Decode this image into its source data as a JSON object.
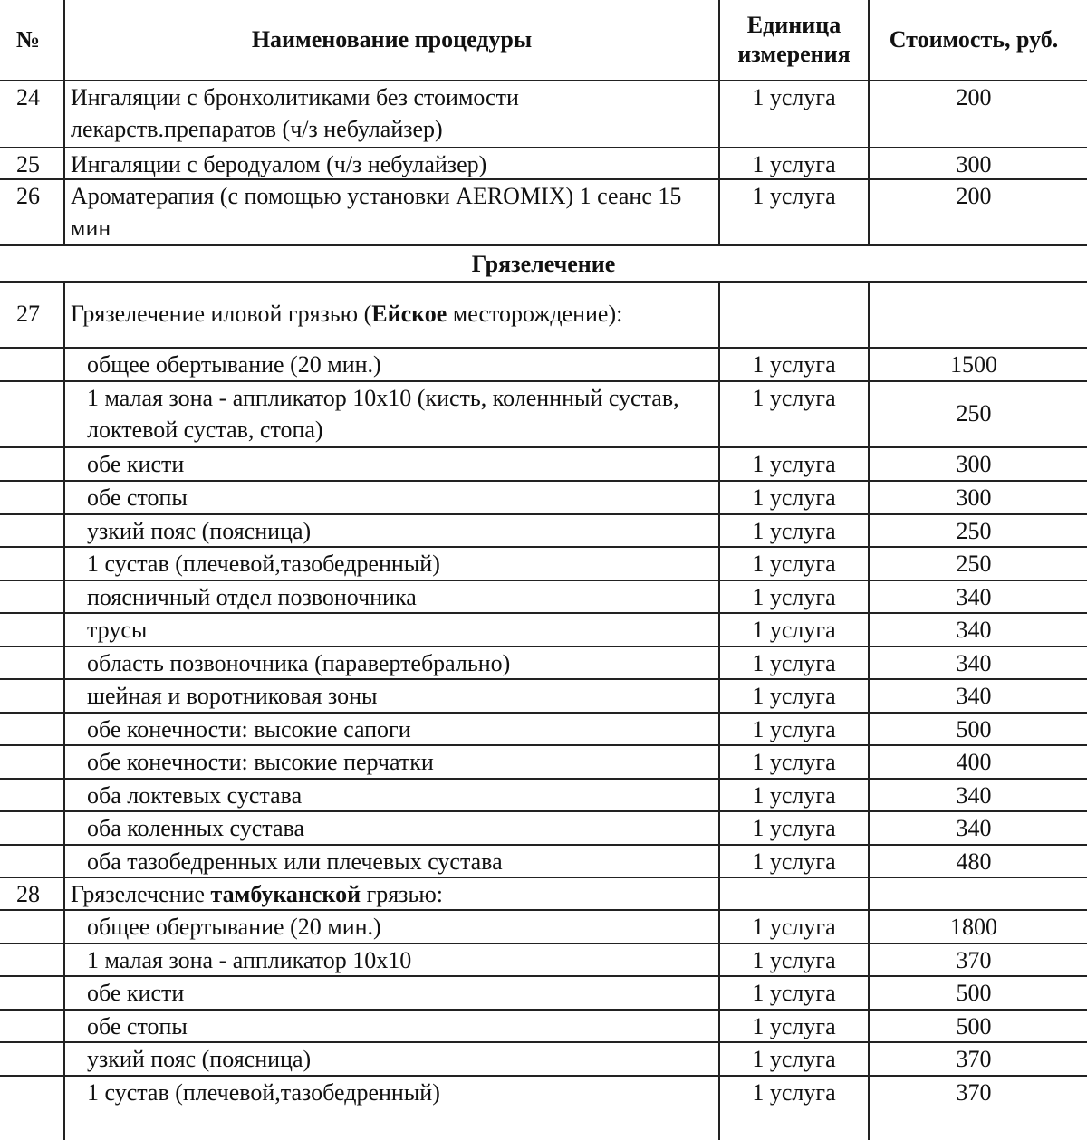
{
  "header": {
    "num": "№",
    "name": "Наименование процедуры",
    "unit": "Единица измерения",
    "price": "Стоимость, руб."
  },
  "section_title": "Грязелечение",
  "rows": [
    {
      "num": "24",
      "name": "Ингаляции с бронхолитиками без стоимости лекарств.препаратов (ч/з небулайзер)",
      "unit": "1 услуга",
      "price": "200"
    },
    {
      "num": "25",
      "name": "Ингаляции с беродуалом (ч/з небулайзер)",
      "unit": "1 услуга",
      "price": "300"
    },
    {
      "num": "26",
      "name": "Ароматерапия (с помощью установки AEROMIX) 1 сеанс 15 мин",
      "unit": "1 услуга",
      "price": "200"
    },
    {
      "section": true
    },
    {
      "num": "27",
      "name_pre": "Грязелечение иловой грязью (",
      "name_bold": "Ейское",
      "name_post": " месторождение):",
      "unit": "",
      "price": "",
      "center": true
    },
    {
      "sub": true,
      "name": "общее обертывание (20 мин.)",
      "unit": "1 услуга",
      "price": "1500"
    },
    {
      "sub": true,
      "name": "1 малая зона - аппликатор 10х10 (кисть, коленнный сустав, локтевой сустав, стопа)",
      "unit": "1 услуга",
      "price": "250",
      "price_center": true
    },
    {
      "sub": true,
      "name": "обе кисти",
      "unit": "1 услуга",
      "price": "300"
    },
    {
      "sub": true,
      "name": "обе стопы",
      "unit": "1 услуга",
      "price": "300"
    },
    {
      "sub": true,
      "name": "узкий пояс (поясница)",
      "unit": "1 услуга",
      "price": "250"
    },
    {
      "sub": true,
      "name": "1 сустав (плечевой,тазобедренный)",
      "unit": "1 услуга",
      "price": "250"
    },
    {
      "sub": true,
      "name": "поясничный отдел позвоночника",
      "unit": "1 услуга",
      "price": "340"
    },
    {
      "sub": true,
      "name": "трусы",
      "unit": "1 услуга",
      "price": "340"
    },
    {
      "sub": true,
      "name": "область позвоночника (паравертебрально)",
      "unit": "1 услуга",
      "price": "340"
    },
    {
      "sub": true,
      "name": "шейная и воротниковая зоны",
      "unit": "1 услуга",
      "price": "340"
    },
    {
      "sub": true,
      "name": "обе конечности: высокие сапоги",
      "unit": "1 услуга",
      "price": "500"
    },
    {
      "sub": true,
      "name": "обе конечности: высокие перчатки",
      "unit": "1 услуга",
      "price": "400"
    },
    {
      "sub": true,
      "name": "оба локтевых сустава",
      "unit": "1 услуга",
      "price": "340"
    },
    {
      "sub": true,
      "name": "оба коленных сустава",
      "unit": "1 услуга",
      "price": "340"
    },
    {
      "sub": true,
      "name": "оба тазобедренных или плечевых сустава",
      "unit": "1 услуга",
      "price": "480"
    },
    {
      "num": "28",
      "name_pre": "Грязелечение ",
      "name_bold": "тамбуканской",
      "name_post": " грязью:",
      "unit": "",
      "price": ""
    },
    {
      "sub": true,
      "name": "общее обертывание (20 мин.)",
      "unit": "1 услуга",
      "price": "1800"
    },
    {
      "sub": true,
      "name": "1 малая зона - аппликатор 10х10",
      "unit": "1 услуга",
      "price": "370"
    },
    {
      "sub": true,
      "name": "обе кисти",
      "unit": "1 услуга",
      "price": "500"
    },
    {
      "sub": true,
      "name": "обе стопы",
      "unit": "1 услуга",
      "price": "500"
    },
    {
      "sub": true,
      "name": "узкий пояс (поясница)",
      "unit": "1 услуга",
      "price": "370"
    },
    {
      "sub": true,
      "name": "1 сустав (плечевой,тазобедренный)",
      "unit": "1 услуга",
      "price": "370"
    }
  ]
}
